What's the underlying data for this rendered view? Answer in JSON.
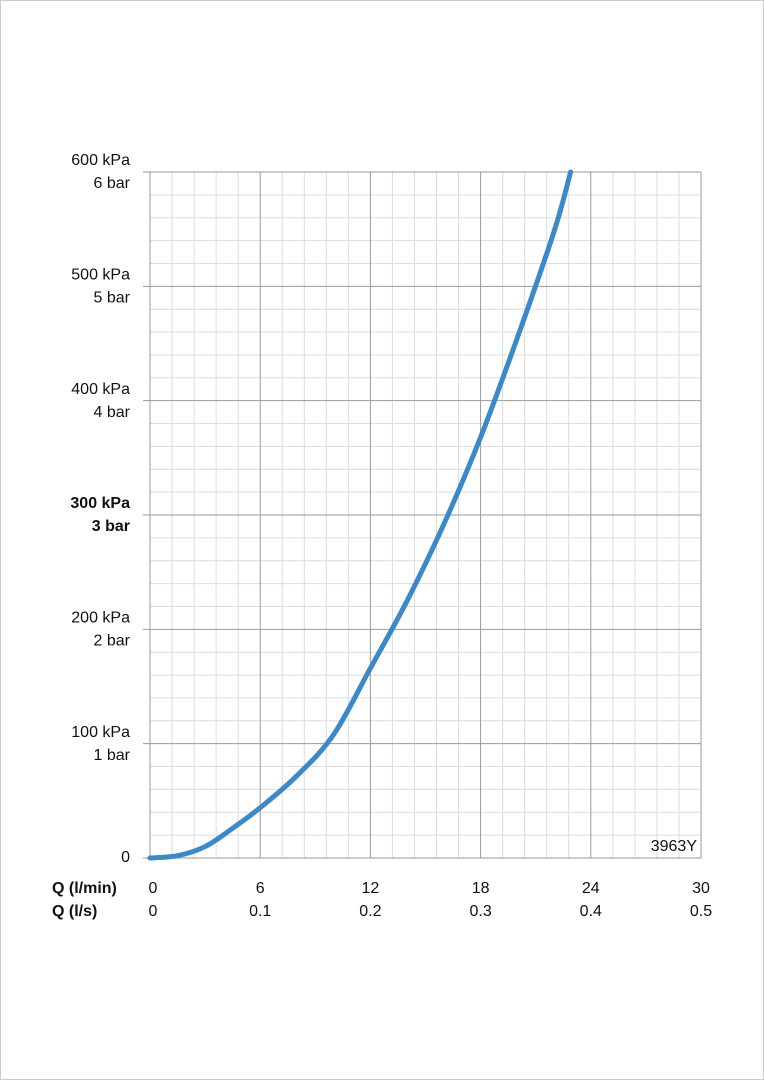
{
  "chart_data": {
    "type": "line",
    "x": [
      0,
      1.5,
      3,
      4.5,
      6,
      8,
      10,
      12,
      14,
      16,
      18,
      20,
      22,
      22.9
    ],
    "values": [
      0,
      2,
      10,
      26,
      44,
      72,
      108,
      166,
      225,
      292,
      368,
      455,
      548,
      600
    ],
    "color": "#3b89c9",
    "xlim": [
      0,
      30
    ],
    "xticks": [
      0,
      6,
      12,
      18,
      24,
      30
    ],
    "xlabel": "Q (l/min)",
    "x2lim": [
      0,
      0.5
    ],
    "x2ticks": [
      0,
      0.1,
      0.2,
      0.3,
      0.4,
      0.5
    ],
    "x2label": "Q (l/s)",
    "ylim": [
      0,
      600
    ],
    "yticks": [
      0,
      {
        "value": 100,
        "label": "100 kPa"
      },
      {
        "value": 200,
        "label": "200 kPa"
      },
      {
        "value": 300,
        "label": "300 kPa"
      },
      {
        "value": 400,
        "label": "400 kPa"
      },
      {
        "value": 500,
        "label": "500 kPa"
      },
      {
        "value": 600,
        "label": "600 kPa"
      }
    ],
    "y2lim": [
      0,
      6
    ],
    "y2ticks": [
      {
        "value": 1,
        "label": "1 bar"
      },
      {
        "value": 2,
        "label": "2 bar"
      },
      {
        "value": 3,
        "label": "3 bar"
      },
      {
        "value": 4,
        "label": "4 bar"
      },
      {
        "value": 5,
        "label": "5 bar"
      },
      {
        "value": 6,
        "label": "6 bar"
      }
    ],
    "highlight_ytick": 300,
    "grid": true,
    "minor_divisions": 5,
    "annotation": "3963Y"
  }
}
